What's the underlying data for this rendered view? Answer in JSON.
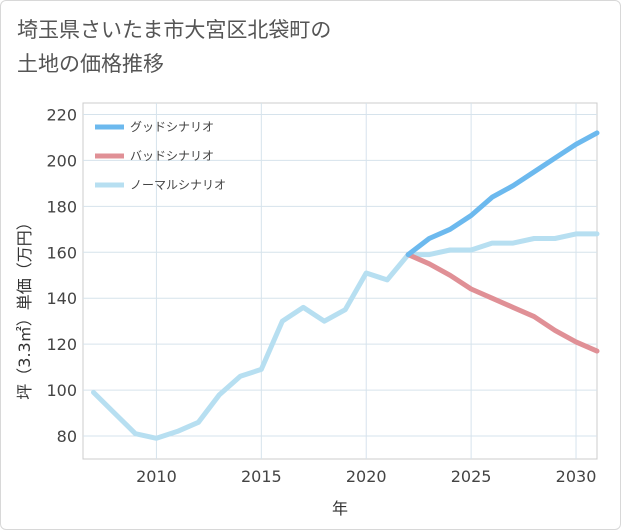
{
  "header": {
    "title_line1": "埼玉県さいたま市大宮区北袋町の",
    "title_line2": "土地の価格推移"
  },
  "chart_data": {
    "type": "line",
    "xlabel": "年",
    "ylabel": "坪（3.3㎡）単価（万円）",
    "xlim": [
      2006.5,
      2031
    ],
    "ylim": [
      70,
      225
    ],
    "x_ticks": [
      2010,
      2015,
      2020,
      2025,
      2030
    ],
    "y_ticks": [
      80,
      100,
      120,
      140,
      160,
      180,
      200,
      220
    ],
    "grid": true,
    "legend_position": "top-left",
    "series": [
      {
        "name": "グッドシナリオ",
        "color": "#6cb9ee",
        "x": [
          2022,
          2023,
          2024,
          2025,
          2026,
          2027,
          2028,
          2029,
          2030,
          2031
        ],
        "values": [
          159,
          166,
          170,
          176,
          184,
          189,
          195,
          201,
          207,
          212
        ]
      },
      {
        "name": "バッドシナリオ",
        "color": "#e09096",
        "x": [
          2022,
          2023,
          2024,
          2025,
          2026,
          2027,
          2028,
          2029,
          2030,
          2031
        ],
        "values": [
          159,
          155,
          150,
          144,
          140,
          136,
          132,
          126,
          121,
          117
        ]
      },
      {
        "name": "ノーマルシナリオ",
        "color": "#b7dff1",
        "x": [
          2007,
          2008,
          2009,
          2010,
          2011,
          2012,
          2013,
          2014,
          2015,
          2016,
          2017,
          2018,
          2019,
          2020,
          2021,
          2022,
          2023,
          2024,
          2025,
          2026,
          2027,
          2028,
          2029,
          2030,
          2031
        ],
        "values": [
          99,
          90,
          81,
          79,
          82,
          86,
          98,
          106,
          109,
          130,
          136,
          130,
          135,
          151,
          148,
          159,
          159,
          161,
          161,
          164,
          164,
          166,
          166,
          168,
          168
        ]
      }
    ]
  }
}
